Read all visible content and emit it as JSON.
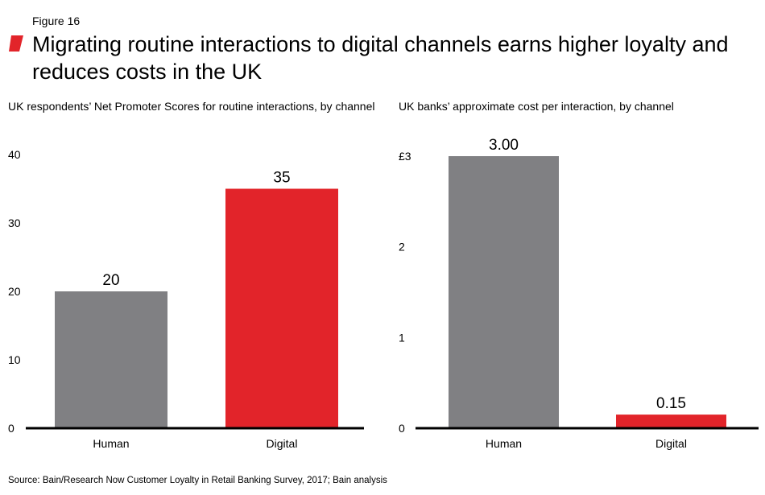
{
  "figure_label": "Figure 16",
  "title": "Migrating routine interactions to digital channels earns higher loyalty and reduces costs in the UK",
  "source": "Source: Bain/Research Now Customer Loyalty in Retail Banking Survey, 2017; Bain analysis",
  "colors": {
    "accent": "#e2242a",
    "gray": "#808083",
    "axis": "#000000"
  },
  "chart_data": [
    {
      "type": "bar",
      "title": "UK respondents’ Net Promoter Scores for routine interactions, by channel",
      "categories": [
        "Human",
        "Digital"
      ],
      "values": [
        20,
        35
      ],
      "data_labels": [
        "20",
        "35"
      ],
      "bar_colors": [
        "#808083",
        "#e2242a"
      ],
      "ylim": [
        0,
        40
      ],
      "yticks": [
        0,
        10,
        20,
        30,
        40
      ],
      "ytick_labels": [
        "0",
        "10",
        "20",
        "30",
        "40"
      ],
      "xlabel": "",
      "ylabel": "",
      "grid": false
    },
    {
      "type": "bar",
      "title": "UK banks’ approximate cost per interaction, by channel",
      "categories": [
        "Human",
        "Digital"
      ],
      "values": [
        3.0,
        0.15
      ],
      "data_labels": [
        "3.00",
        "0.15"
      ],
      "bar_colors": [
        "#808083",
        "#e2242a"
      ],
      "ylim": [
        0,
        3
      ],
      "yticks": [
        0,
        1,
        2,
        3
      ],
      "ytick_labels": [
        "0",
        "1",
        "2",
        "£3"
      ],
      "xlabel": "",
      "ylabel": "",
      "grid": false
    }
  ]
}
